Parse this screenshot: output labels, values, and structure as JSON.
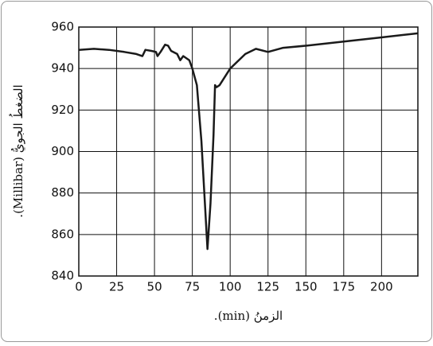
{
  "chart_data": {
    "type": "line",
    "xlabel": "الزمنُ (min).",
    "ylabel": "الضغطُ الجويُّ (Millibar).",
    "x": [
      0,
      10,
      20,
      30,
      38,
      42,
      44,
      48,
      51,
      52,
      54,
      57,
      59,
      61,
      65,
      67,
      69,
      73,
      75,
      78,
      81,
      85,
      87,
      89,
      90,
      91,
      93,
      100,
      110,
      117,
      125,
      135,
      150,
      175,
      200,
      224
    ],
    "series": [
      {
        "color": "#1a1a1a",
        "values": [
          949,
          949.5,
          949,
          948,
          947,
          946,
          949,
          948.5,
          948,
          946,
          948,
          951.5,
          951,
          948.5,
          947,
          944,
          946,
          944,
          940,
          932,
          905,
          853,
          875,
          908,
          932,
          931,
          932,
          940,
          947,
          949.5,
          948,
          950,
          951,
          953,
          955,
          957
        ]
      }
    ],
    "xlim": [
      0,
      224
    ],
    "xticks": [
      0,
      25,
      50,
      75,
      100,
      125,
      150,
      175,
      200
    ],
    "ylim": [
      840,
      960
    ],
    "yticks": [
      840,
      860,
      880,
      900,
      920,
      940,
      960
    ],
    "grid": true
  }
}
